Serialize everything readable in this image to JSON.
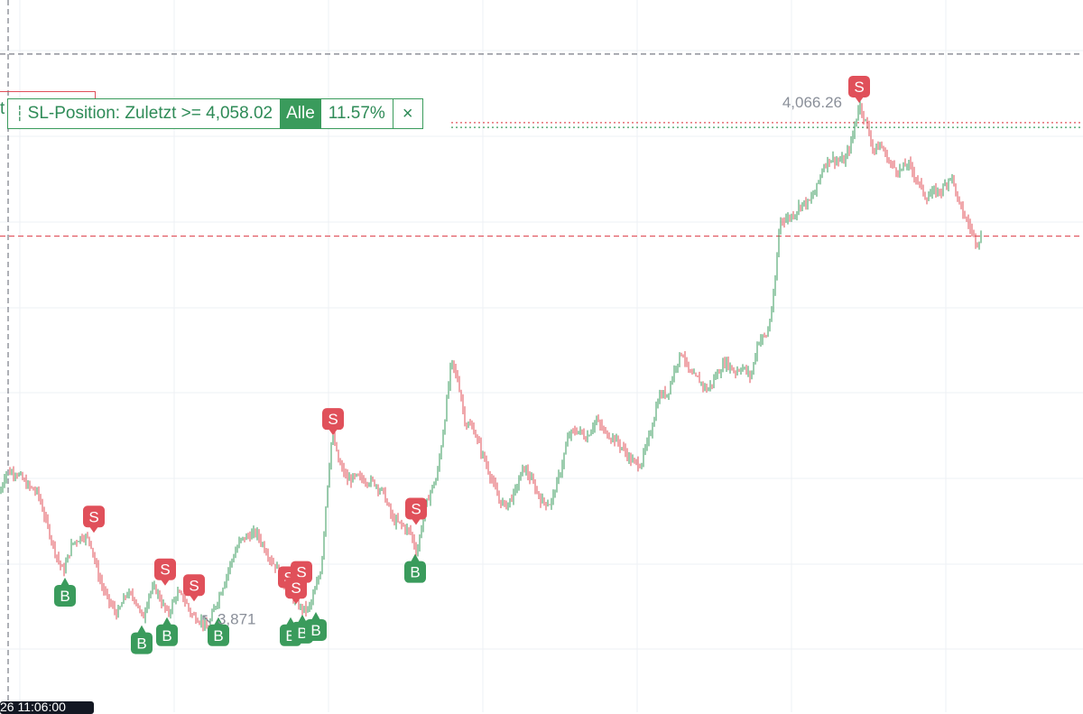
{
  "sl_panel": {
    "grip_icon": "drag-handle-icon",
    "label": "SL-Position: Zuletzt >= 4,058.02",
    "scope": "Alle",
    "percent": "11.57%",
    "close_glyph": "×"
  },
  "fragment_text": "t",
  "crosshair_time_label": "26 11:06:00",
  "chart_data": {
    "type": "candlestick",
    "y_range": [
      3835,
      4105
    ],
    "horizontal_lines": [
      {
        "price": 4084.5,
        "style": "dashed",
        "color": "#787b86",
        "role": "crosshair"
      },
      {
        "price": 4058.5,
        "style": "dotted",
        "color": "#e0505a",
        "role": "order-line"
      },
      {
        "price": 4056.7,
        "style": "dotted",
        "color": "#3a9b5c",
        "role": "sl-position"
      },
      {
        "price": 4015.5,
        "style": "dashed",
        "color": "#e0505a",
        "role": "last-price"
      }
    ],
    "path": [
      [
        0,
        3918
      ],
      [
        6,
        3926
      ],
      [
        18,
        3926
      ],
      [
        30,
        3921
      ],
      [
        42,
        3918
      ],
      [
        52,
        3906
      ],
      [
        62,
        3895
      ],
      [
        70,
        3888
      ],
      [
        80,
        3899
      ],
      [
        92,
        3902
      ],
      [
        100,
        3900
      ],
      [
        108,
        3888
      ],
      [
        115,
        3881
      ],
      [
        122,
        3876
      ],
      [
        130,
        3872
      ],
      [
        140,
        3880
      ],
      [
        150,
        3878
      ],
      [
        158,
        3870
      ],
      [
        165,
        3880
      ],
      [
        172,
        3882
      ],
      [
        180,
        3876
      ],
      [
        186,
        3872
      ],
      [
        196,
        3880
      ],
      [
        204,
        3878
      ],
      [
        212,
        3872
      ],
      [
        222,
        3870
      ],
      [
        230,
        3866
      ],
      [
        238,
        3875
      ],
      [
        246,
        3882
      ],
      [
        256,
        3892
      ],
      [
        266,
        3900
      ],
      [
        276,
        3902
      ],
      [
        284,
        3903
      ],
      [
        292,
        3898
      ],
      [
        300,
        3893
      ],
      [
        310,
        3888
      ],
      [
        318,
        3881
      ],
      [
        326,
        3878
      ],
      [
        334,
        3874
      ],
      [
        342,
        3874
      ],
      [
        350,
        3882
      ],
      [
        356,
        3890
      ],
      [
        362,
        3918
      ],
      [
        368,
        3941
      ],
      [
        375,
        3930
      ],
      [
        385,
        3923
      ],
      [
        395,
        3924
      ],
      [
        405,
        3923
      ],
      [
        415,
        3922
      ],
      [
        425,
        3918
      ],
      [
        435,
        3908
      ],
      [
        445,
        3906
      ],
      [
        455,
        3903
      ],
      [
        462,
        3895
      ],
      [
        468,
        3908
      ],
      [
        476,
        3918
      ],
      [
        484,
        3924
      ],
      [
        492,
        3944
      ],
      [
        500,
        3968
      ],
      [
        508,
        3960
      ],
      [
        516,
        3944
      ],
      [
        524,
        3943
      ],
      [
        532,
        3935
      ],
      [
        542,
        3926
      ],
      [
        552,
        3916
      ],
      [
        560,
        3913
      ],
      [
        570,
        3918
      ],
      [
        580,
        3928
      ],
      [
        590,
        3922
      ],
      [
        600,
        3915
      ],
      [
        610,
        3914
      ],
      [
        620,
        3925
      ],
      [
        630,
        3940
      ],
      [
        640,
        3942
      ],
      [
        650,
        3939
      ],
      [
        660,
        3946
      ],
      [
        670,
        3941
      ],
      [
        680,
        3939
      ],
      [
        690,
        3935
      ],
      [
        700,
        3930
      ],
      [
        710,
        3929
      ],
      [
        720,
        3940
      ],
      [
        730,
        3955
      ],
      [
        740,
        3956
      ],
      [
        748,
        3966
      ],
      [
        756,
        3972
      ],
      [
        764,
        3963
      ],
      [
        774,
        3961
      ],
      [
        784,
        3957
      ],
      [
        794,
        3963
      ],
      [
        804,
        3968
      ],
      [
        814,
        3964
      ],
      [
        822,
        3966
      ],
      [
        832,
        3962
      ],
      [
        840,
        3976
      ],
      [
        850,
        3978
      ],
      [
        858,
        3994
      ],
      [
        864,
        4022
      ],
      [
        872,
        4022
      ],
      [
        880,
        4024
      ],
      [
        888,
        4028
      ],
      [
        896,
        4028
      ],
      [
        904,
        4033
      ],
      [
        912,
        4042
      ],
      [
        920,
        4045
      ],
      [
        928,
        4044
      ],
      [
        936,
        4044
      ],
      [
        944,
        4052
      ],
      [
        952,
        4066
      ],
      [
        960,
        4058
      ],
      [
        968,
        4048
      ],
      [
        976,
        4050
      ],
      [
        986,
        4043
      ],
      [
        996,
        4040
      ],
      [
        1006,
        4043
      ],
      [
        1016,
        4037
      ],
      [
        1026,
        4030
      ],
      [
        1034,
        4032
      ],
      [
        1044,
        4033
      ],
      [
        1054,
        4039
      ],
      [
        1062,
        4028
      ],
      [
        1070,
        4022
      ],
      [
        1076,
        4018
      ],
      [
        1082,
        4013
      ],
      [
        1088,
        4016
      ]
    ],
    "markers": [
      {
        "side": "B",
        "x": 72,
        "price": 3886
      },
      {
        "side": "S",
        "x": 104,
        "price": 3903
      },
      {
        "side": "B",
        "x": 157,
        "price": 3868
      },
      {
        "side": "B",
        "x": 185,
        "price": 3871
      },
      {
        "side": "S",
        "x": 183,
        "price": 3883
      },
      {
        "side": "S",
        "x": 215,
        "price": 3877
      },
      {
        "side": "B",
        "x": 242,
        "price": 3871
      },
      {
        "side": "S",
        "x": 320,
        "price": 3880
      },
      {
        "side": "S",
        "x": 334,
        "price": 3882
      },
      {
        "side": "S",
        "x": 328,
        "price": 3876
      },
      {
        "side": "B",
        "x": 322,
        "price": 3871
      },
      {
        "side": "B",
        "x": 335,
        "price": 3872
      },
      {
        "side": "B",
        "x": 350,
        "price": 3873
      },
      {
        "side": "S",
        "x": 369,
        "price": 3940
      },
      {
        "side": "S",
        "x": 461,
        "price": 3906
      },
      {
        "side": "B",
        "x": 460,
        "price": 3895
      },
      {
        "side": "S",
        "x": 952,
        "price": 4066
      }
    ],
    "annotations": [
      {
        "text": "4,066.26",
        "x": 933,
        "price": 4066.26,
        "anchor": "end"
      },
      {
        "text": "↖ 3,871",
        "x": 222,
        "price": 3870.5,
        "anchor": "start"
      }
    ],
    "colors": {
      "up": "#3a9b5c",
      "down": "#e0505a",
      "grid": "#eef0f4"
    }
  }
}
